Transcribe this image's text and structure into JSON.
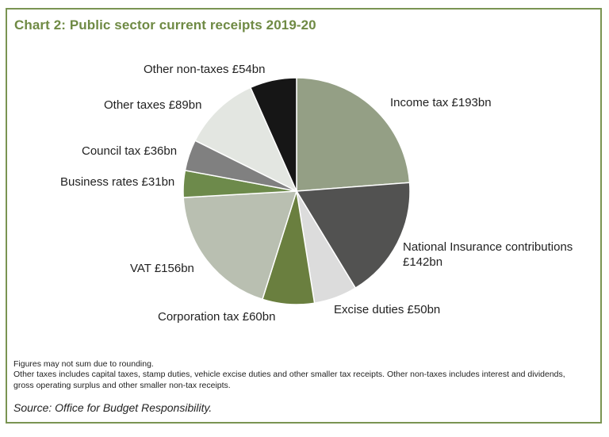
{
  "chart_data": {
    "type": "pie",
    "title": "Chart 2: Public sector current receipts 2019-20",
    "start": "top",
    "direction": "clockwise",
    "slices": [
      {
        "label": "Income tax £193bn",
        "value": 193,
        "color": "#949f85"
      },
      {
        "label": "National Insurance contributions £142bn",
        "value": 142,
        "color": "#525251"
      },
      {
        "label": "Excise duties £50bn",
        "value": 50,
        "color": "#dcdcdc"
      },
      {
        "label": "Corporation tax £60bn",
        "value": 60,
        "color": "#6a7f3f"
      },
      {
        "label": "VAT £156bn",
        "value": 156,
        "color": "#b9bfb1"
      },
      {
        "label": "Business rates £31bn",
        "value": 31,
        "color": "#6d8a4b"
      },
      {
        "label": "Council tax £36bn",
        "value": 36,
        "color": "#808080"
      },
      {
        "label": "Other taxes £89bn",
        "value": 89,
        "color": "#e3e6e1"
      },
      {
        "label": "Other non-taxes £54bn",
        "value": 54,
        "color": "#161616"
      }
    ],
    "unit": "£bn"
  },
  "notes": [
    "Figures may not sum due to rounding.",
    "Other taxes includes capital taxes, stamp duties, vehicle excise duties and other smaller tax receipts. Other non-taxes includes interest and dividends, gross operating surplus and other smaller non-tax receipts."
  ],
  "source": "Source: Office for Budget Responsibility.",
  "colors": {
    "border": "#7a9452",
    "title": "#6f8a44"
  }
}
